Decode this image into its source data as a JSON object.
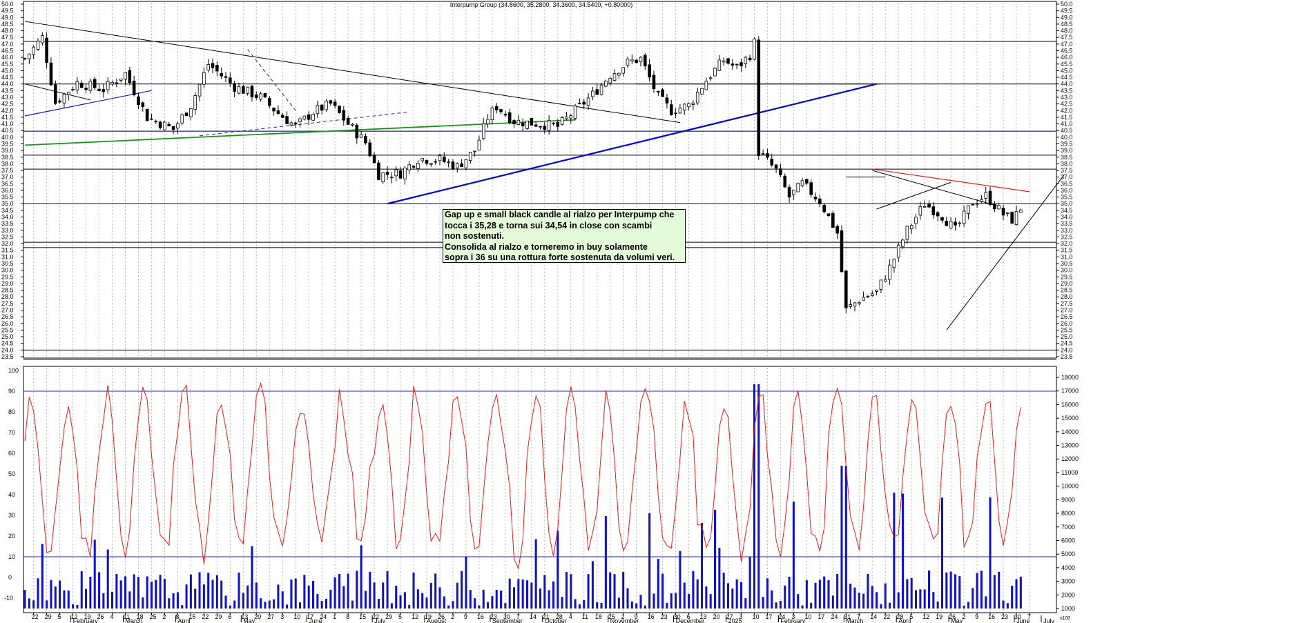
{
  "chart_data": {
    "type": "candlestick",
    "title": "Interpump Group (34.8600, 35.2800, 34.3600, 34.5400, +0.80000)",
    "note": "Gap up e small black candle al rialzo per Interpump che\ntocca i 35,28 e torna sui 34,54 in close con scambi\nnon sostenuti.\nConsolida al rialzo e torneremo in buy solamente\nsopra i 36 su una rottura forte sostenuta da volumi veri.",
    "price_axis": {
      "min": 23.5,
      "max": 50.0,
      "step": 0.5
    },
    "oscillator_axis": {
      "min": 0,
      "max": 100,
      "step": 10,
      "extra_label": "-10",
      "levels": [
        90,
        10
      ]
    },
    "volume_axis": {
      "min": 1000,
      "max": 18000,
      "labels": [
        1000,
        2000,
        3000,
        4000,
        5000,
        6000,
        7000,
        8000,
        9000,
        10000,
        11000,
        12000,
        13000,
        14000,
        15000,
        16000,
        17000,
        18000
      ],
      "unit_label": "x100"
    },
    "x_ticks": [
      "22",
      "29",
      "5",
      "12",
      "19",
      "26",
      "4",
      "11",
      "18",
      "25",
      "2",
      "8",
      "15",
      "22",
      "29",
      "6",
      "13",
      "20",
      "27",
      "3",
      "10",
      "17",
      "24",
      "1",
      "8",
      "15",
      "22",
      "29",
      "5",
      "12",
      "19",
      "26",
      "2",
      "9",
      "16",
      "23",
      "30",
      "7",
      "14",
      "21",
      "28",
      "4",
      "11",
      "18",
      "25",
      "2",
      "9",
      "16",
      "23",
      "30",
      "6",
      "13",
      "20",
      "27",
      "3",
      "10",
      "17",
      "24",
      "3",
      "10",
      "17",
      "24",
      "31",
      "7",
      "14",
      "22",
      "28",
      "5",
      "12",
      "19",
      "26",
      "2",
      "9",
      "16",
      "23",
      "30",
      "7"
    ],
    "months": [
      "February",
      "March",
      "April",
      "May",
      "June",
      "July",
      "August",
      "September",
      "October",
      "November",
      "December",
      "2025",
      "February",
      "March",
      "April",
      "May",
      "June",
      "July"
    ],
    "horizontal_levels": [
      47.2,
      44.0,
      40.45,
      38.65,
      37.6,
      35.0,
      32.1,
      31.7,
      24.0,
      23.3
    ],
    "dotted_level": 40.45,
    "anchors": [
      {
        "date": 0,
        "price": 45.9
      },
      {
        "date": 4,
        "price": 47.5
      },
      {
        "date": 7,
        "price": 42.6
      },
      {
        "date": 12,
        "price": 44.1
      },
      {
        "date": 18,
        "price": 43.6
      },
      {
        "date": 23,
        "price": 44.8
      },
      {
        "date": 28,
        "price": 41.5
      },
      {
        "date": 34,
        "price": 40.6
      },
      {
        "date": 38,
        "price": 42.4
      },
      {
        "date": 42,
        "price": 45.5
      },
      {
        "date": 48,
        "price": 43.8
      },
      {
        "date": 54,
        "price": 43.0
      },
      {
        "date": 58,
        "price": 41.8
      },
      {
        "date": 62,
        "price": 40.8
      },
      {
        "date": 66,
        "price": 41.9
      },
      {
        "date": 70,
        "price": 42.5
      },
      {
        "date": 74,
        "price": 41.0
      },
      {
        "date": 78,
        "price": 39.6
      },
      {
        "date": 81,
        "price": 37.2
      },
      {
        "date": 86,
        "price": 37.3
      },
      {
        "date": 90,
        "price": 38.4
      },
      {
        "date": 95,
        "price": 38.3
      },
      {
        "date": 99,
        "price": 37.8
      },
      {
        "date": 103,
        "price": 39.0
      },
      {
        "date": 106,
        "price": 41.5
      },
      {
        "date": 108,
        "price": 42.3
      },
      {
        "date": 112,
        "price": 41.2
      },
      {
        "date": 118,
        "price": 41.0
      },
      {
        "date": 122,
        "price": 40.8
      },
      {
        "date": 126,
        "price": 42.0
      },
      {
        "date": 130,
        "price": 43.2
      },
      {
        "date": 134,
        "price": 44.7
      },
      {
        "date": 138,
        "price": 45.6
      },
      {
        "date": 141,
        "price": 45.9
      },
      {
        "date": 145,
        "price": 43.0
      },
      {
        "date": 148,
        "price": 42.0
      },
      {
        "date": 152,
        "price": 42.4
      },
      {
        "date": 156,
        "price": 44.3
      },
      {
        "date": 160,
        "price": 45.8
      },
      {
        "date": 163,
        "price": 45.2
      },
      {
        "date": 166,
        "price": 46.2
      },
      {
        "date": 167,
        "price": 47.1
      },
      {
        "date": 168,
        "price": 38.9
      },
      {
        "date": 172,
        "price": 37.5
      },
      {
        "date": 175,
        "price": 35.5
      },
      {
        "date": 178,
        "price": 36.5
      },
      {
        "date": 182,
        "price": 35.2
      },
      {
        "date": 186,
        "price": 32.8
      },
      {
        "date": 188,
        "price": 27.0
      },
      {
        "date": 191,
        "price": 27.8
      },
      {
        "date": 195,
        "price": 28.4
      },
      {
        "date": 198,
        "price": 30.2
      },
      {
        "date": 202,
        "price": 33.0
      },
      {
        "date": 206,
        "price": 35.0
      },
      {
        "date": 210,
        "price": 34.1
      },
      {
        "date": 213,
        "price": 33.0
      },
      {
        "date": 217,
        "price": 35.1
      },
      {
        "date": 220,
        "price": 35.6
      },
      {
        "date": 224,
        "price": 34.2
      },
      {
        "date": 226,
        "price": 33.8
      },
      {
        "date": 228,
        "price": 34.54
      }
    ]
  }
}
